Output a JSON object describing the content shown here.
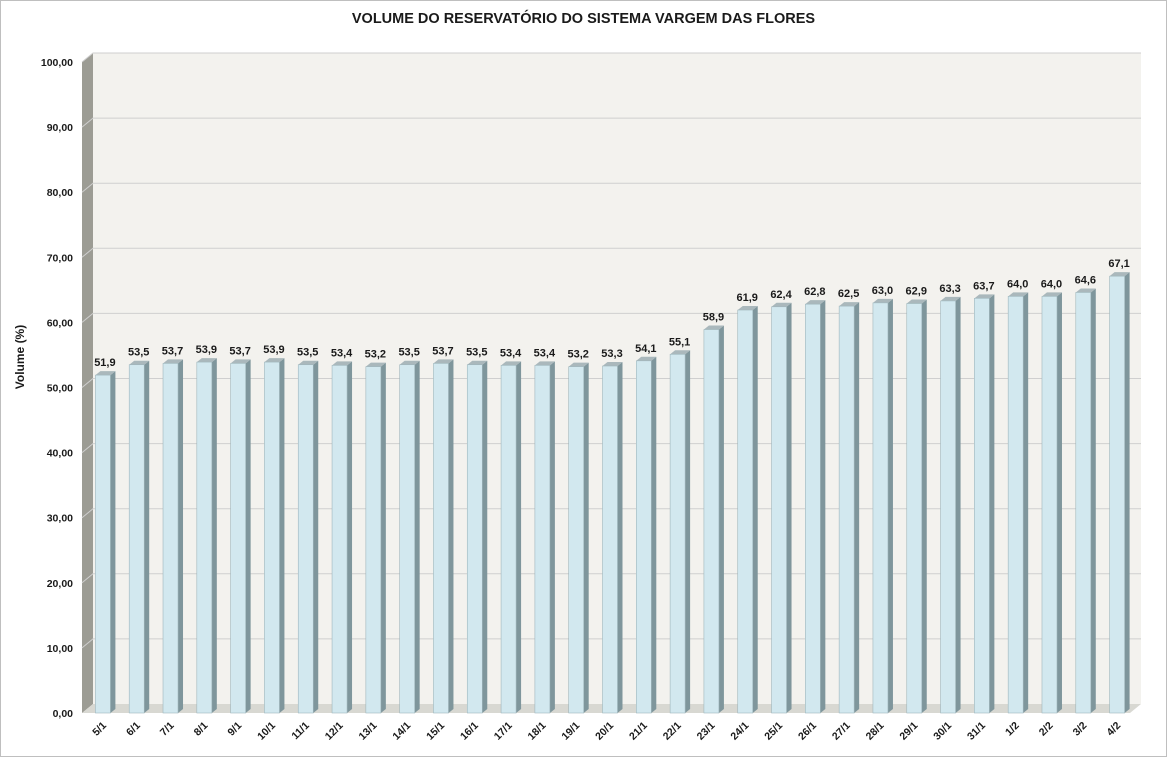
{
  "chart_data": {
    "type": "bar",
    "title": "VOLUME DO RESERVATÓRIO DO SISTEMA VARGEM DAS FLORES",
    "xlabel": "",
    "ylabel": "Volume (%)",
    "ylim": [
      0,
      100
    ],
    "yticks": [
      0,
      10,
      20,
      30,
      40,
      50,
      60,
      70,
      80,
      90,
      100
    ],
    "ytick_labels": [
      "0,00",
      "10,00",
      "20,00",
      "30,00",
      "40,00",
      "50,00",
      "60,00",
      "70,00",
      "80,00",
      "90,00",
      "100,00"
    ],
    "grid": true,
    "legend": "none",
    "categories": [
      "5/1",
      "6/1",
      "7/1",
      "8/1",
      "9/1",
      "10/1",
      "11/1",
      "12/1",
      "13/1",
      "14/1",
      "15/1",
      "16/1",
      "17/1",
      "18/1",
      "19/1",
      "20/1",
      "21/1",
      "22/1",
      "23/1",
      "24/1",
      "25/1",
      "26/1",
      "27/1",
      "28/1",
      "29/1",
      "30/1",
      "31/1",
      "1/2",
      "2/2",
      "3/2",
      "4/2"
    ],
    "values": [
      51.9,
      53.5,
      53.7,
      53.9,
      53.7,
      53.9,
      53.5,
      53.4,
      53.2,
      53.5,
      53.7,
      53.5,
      53.4,
      53.4,
      53.2,
      53.3,
      54.1,
      55.1,
      58.9,
      61.9,
      62.4,
      62.8,
      62.5,
      63.0,
      62.9,
      63.3,
      63.7,
      64.0,
      64.0,
      64.6,
      67.1
    ],
    "value_labels": [
      "51,9",
      "53,5",
      "53,7",
      "53,9",
      "53,7",
      "53,9",
      "53,5",
      "53,4",
      "53,2",
      "53,5",
      "53,7",
      "53,5",
      "53,4",
      "53,4",
      "53,2",
      "53,3",
      "54,1",
      "55,1",
      "58,9",
      "61,9",
      "62,4",
      "62,8",
      "62,5",
      "63,0",
      "62,9",
      "63,3",
      "63,7",
      "64,0",
      "64,0",
      "64,6",
      "67,1"
    ],
    "colors": {
      "bar_front": "#d2e8ef",
      "bar_side": "#7f969c",
      "bar_top": "#aab8bc",
      "wall": "#f3f2ee",
      "wall_side": "#9c9c94",
      "floor": "#d8d8d2",
      "gridline": "#cfcfcf"
    }
  }
}
